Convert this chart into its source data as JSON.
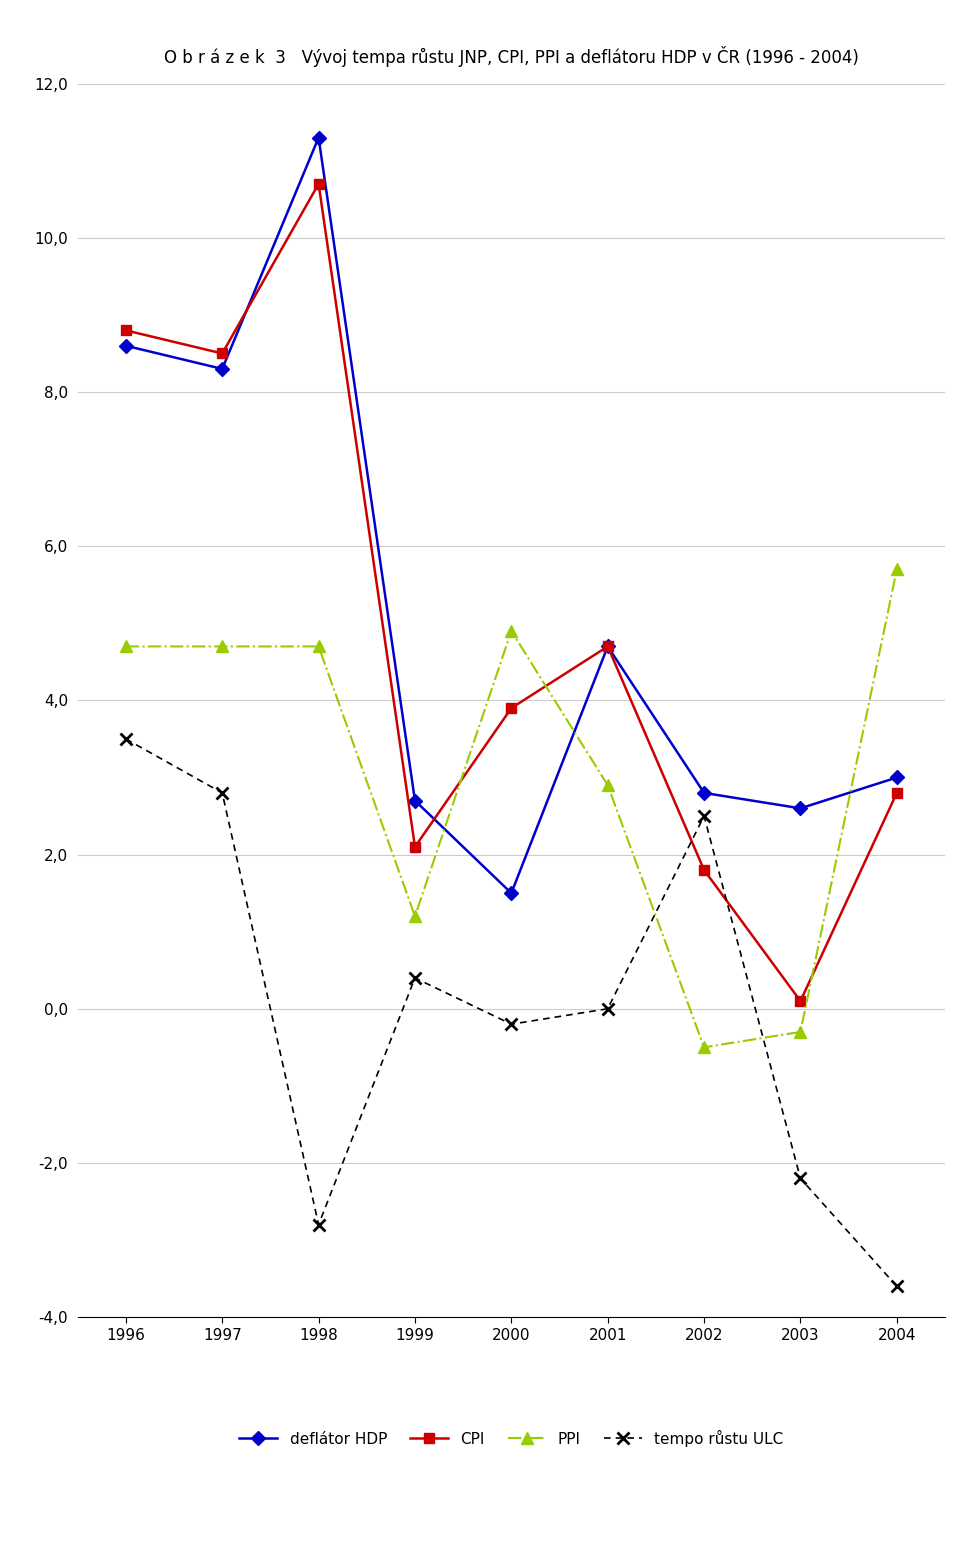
{
  "years": [
    1996,
    1997,
    1998,
    1999,
    2000,
    2001,
    2002,
    2003,
    2004
  ],
  "deflator_HDP": [
    8.6,
    8.3,
    11.3,
    2.7,
    1.5,
    4.7,
    2.8,
    2.6,
    3.0
  ],
  "CPI": [
    8.8,
    8.5,
    10.7,
    2.1,
    3.9,
    4.7,
    1.8,
    0.1,
    2.8
  ],
  "PPI": [
    4.7,
    4.7,
    4.7,
    1.2,
    4.9,
    2.9,
    -0.5,
    -0.3,
    5.7
  ],
  "ULC": [
    3.5,
    2.8,
    -2.8,
    0.4,
    -0.2,
    0.0,
    2.5,
    -2.2,
    -3.6
  ],
  "title": "Vývoj tempa růstu JNP, CPI, PPI a deflátoru HDP v ČR (1996 - 2004)",
  "title_prefix": "O b r á z e k  3",
  "ylim": [
    -4.0,
    12.0
  ],
  "yticks": [
    -4.0,
    -2.0,
    0.0,
    2.0,
    4.0,
    6.0,
    8.0,
    10.0,
    12.0
  ],
  "color_deflator": "#0000CC",
  "color_cpi": "#CC0000",
  "color_ppi": "#99CC00",
  "color_ulc": "#000000",
  "legend_deflator": "deflátor HDP",
  "legend_cpi": "CPI",
  "legend_ppi": "PPI",
  "legend_ulc": "tempo růstu ULC"
}
